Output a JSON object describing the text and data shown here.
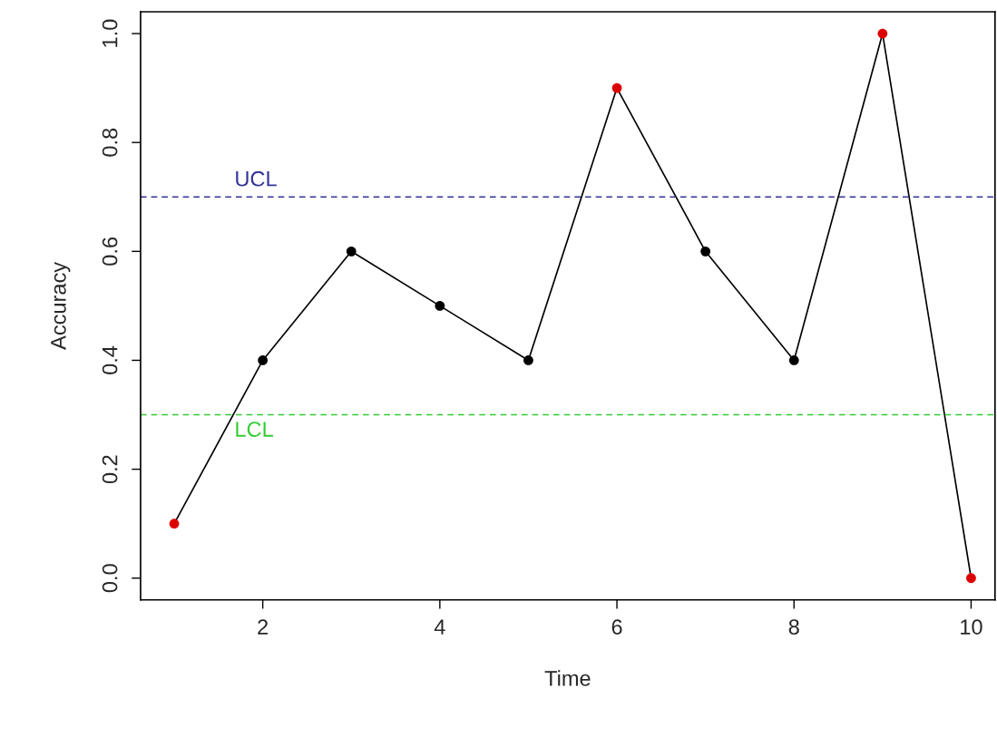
{
  "chart_data": {
    "type": "line",
    "xlabel": "Time",
    "ylabel": "Accuracy",
    "x": [
      1,
      2,
      3,
      4,
      5,
      6,
      7,
      8,
      9,
      10
    ],
    "series": [
      {
        "color": "#000000",
        "values": [
          0.1,
          0.4,
          0.6,
          0.5,
          0.4,
          0.9,
          0.6,
          0.4,
          1.0,
          0.0
        ],
        "colors": [
          "#dd0000",
          "#000000",
          "#000000",
          "#000000",
          "#000000",
          "#dd0000",
          "#000000",
          "#000000",
          "#dd0000",
          "#dd0000"
        ]
      }
    ],
    "marker": "circle",
    "line_style": "solid",
    "xlim": [
      0.62,
      10.27
    ],
    "ylim": [
      -0.04,
      1.04
    ],
    "xticks": [
      2,
      4,
      6,
      8,
      10
    ],
    "yticks": [
      {
        "value": 0,
        "label": "0.0"
      },
      {
        "value": 0.2,
        "label": "0.2"
      },
      {
        "value": 0.4,
        "label": "0.4"
      },
      {
        "value": 0.6,
        "label": "0.6"
      },
      {
        "value": 0.8,
        "label": "0.8"
      },
      {
        "value": 1.0,
        "label": "1.0"
      }
    ],
    "ref_lines": [
      {
        "axis": "y",
        "value": 0.7,
        "label": "UCL",
        "color": "#333399",
        "line_style": "dashed"
      },
      {
        "axis": "y",
        "value": 0.3,
        "label": "LCL",
        "color": "#33cc33",
        "line_style": "dashed"
      }
    ],
    "grid": false,
    "legend": false
  }
}
